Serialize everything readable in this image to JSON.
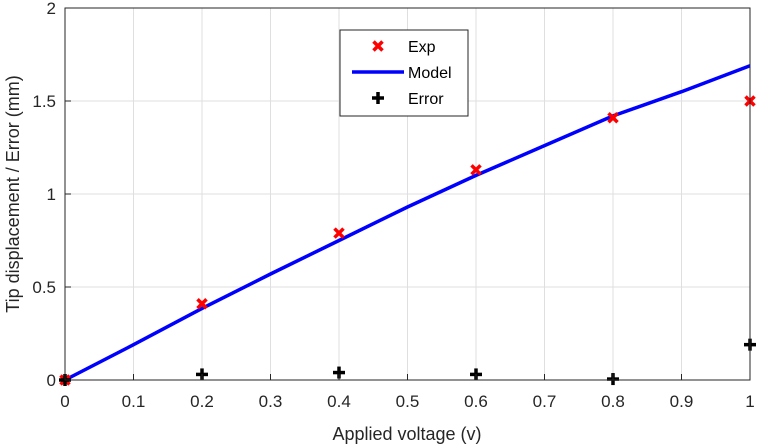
{
  "chart_data": {
    "type": "line",
    "title": "",
    "xlabel": "Applied voltage (v)",
    "ylabel": "Tip displacement / Error (mm)",
    "xlim": [
      0,
      1
    ],
    "ylim": [
      0,
      2
    ],
    "x_ticks": [
      "0",
      "0.1",
      "0.2",
      "0.3",
      "0.4",
      "0.5",
      "0.6",
      "0.7",
      "0.8",
      "0.9",
      "1"
    ],
    "y_ticks": [
      "0",
      "0.5",
      "1",
      "1.5",
      "2"
    ],
    "grid": true,
    "legend_position": "top-center",
    "series": [
      {
        "name": "Exp",
        "kind": "scatter",
        "marker": "x",
        "color": "#ff0000",
        "x": [
          0,
          0.2,
          0.4,
          0.6,
          0.8,
          1.0
        ],
        "y": [
          0,
          0.41,
          0.79,
          1.13,
          1.41,
          1.5
        ]
      },
      {
        "name": "Model",
        "kind": "line",
        "color": "#0000ff",
        "x": [
          0,
          0.1,
          0.2,
          0.3,
          0.4,
          0.5,
          0.6,
          0.7,
          0.8,
          0.9,
          1.0
        ],
        "y": [
          0,
          0.19,
          0.385,
          0.57,
          0.75,
          0.93,
          1.1,
          1.26,
          1.42,
          1.55,
          1.69
        ]
      },
      {
        "name": "Error",
        "kind": "scatter",
        "marker": "+",
        "color": "#000000",
        "x": [
          0,
          0.2,
          0.4,
          0.6,
          0.8,
          1.0
        ],
        "y": [
          0,
          0.03,
          0.04,
          0.03,
          0.005,
          0.19
        ]
      }
    ]
  }
}
